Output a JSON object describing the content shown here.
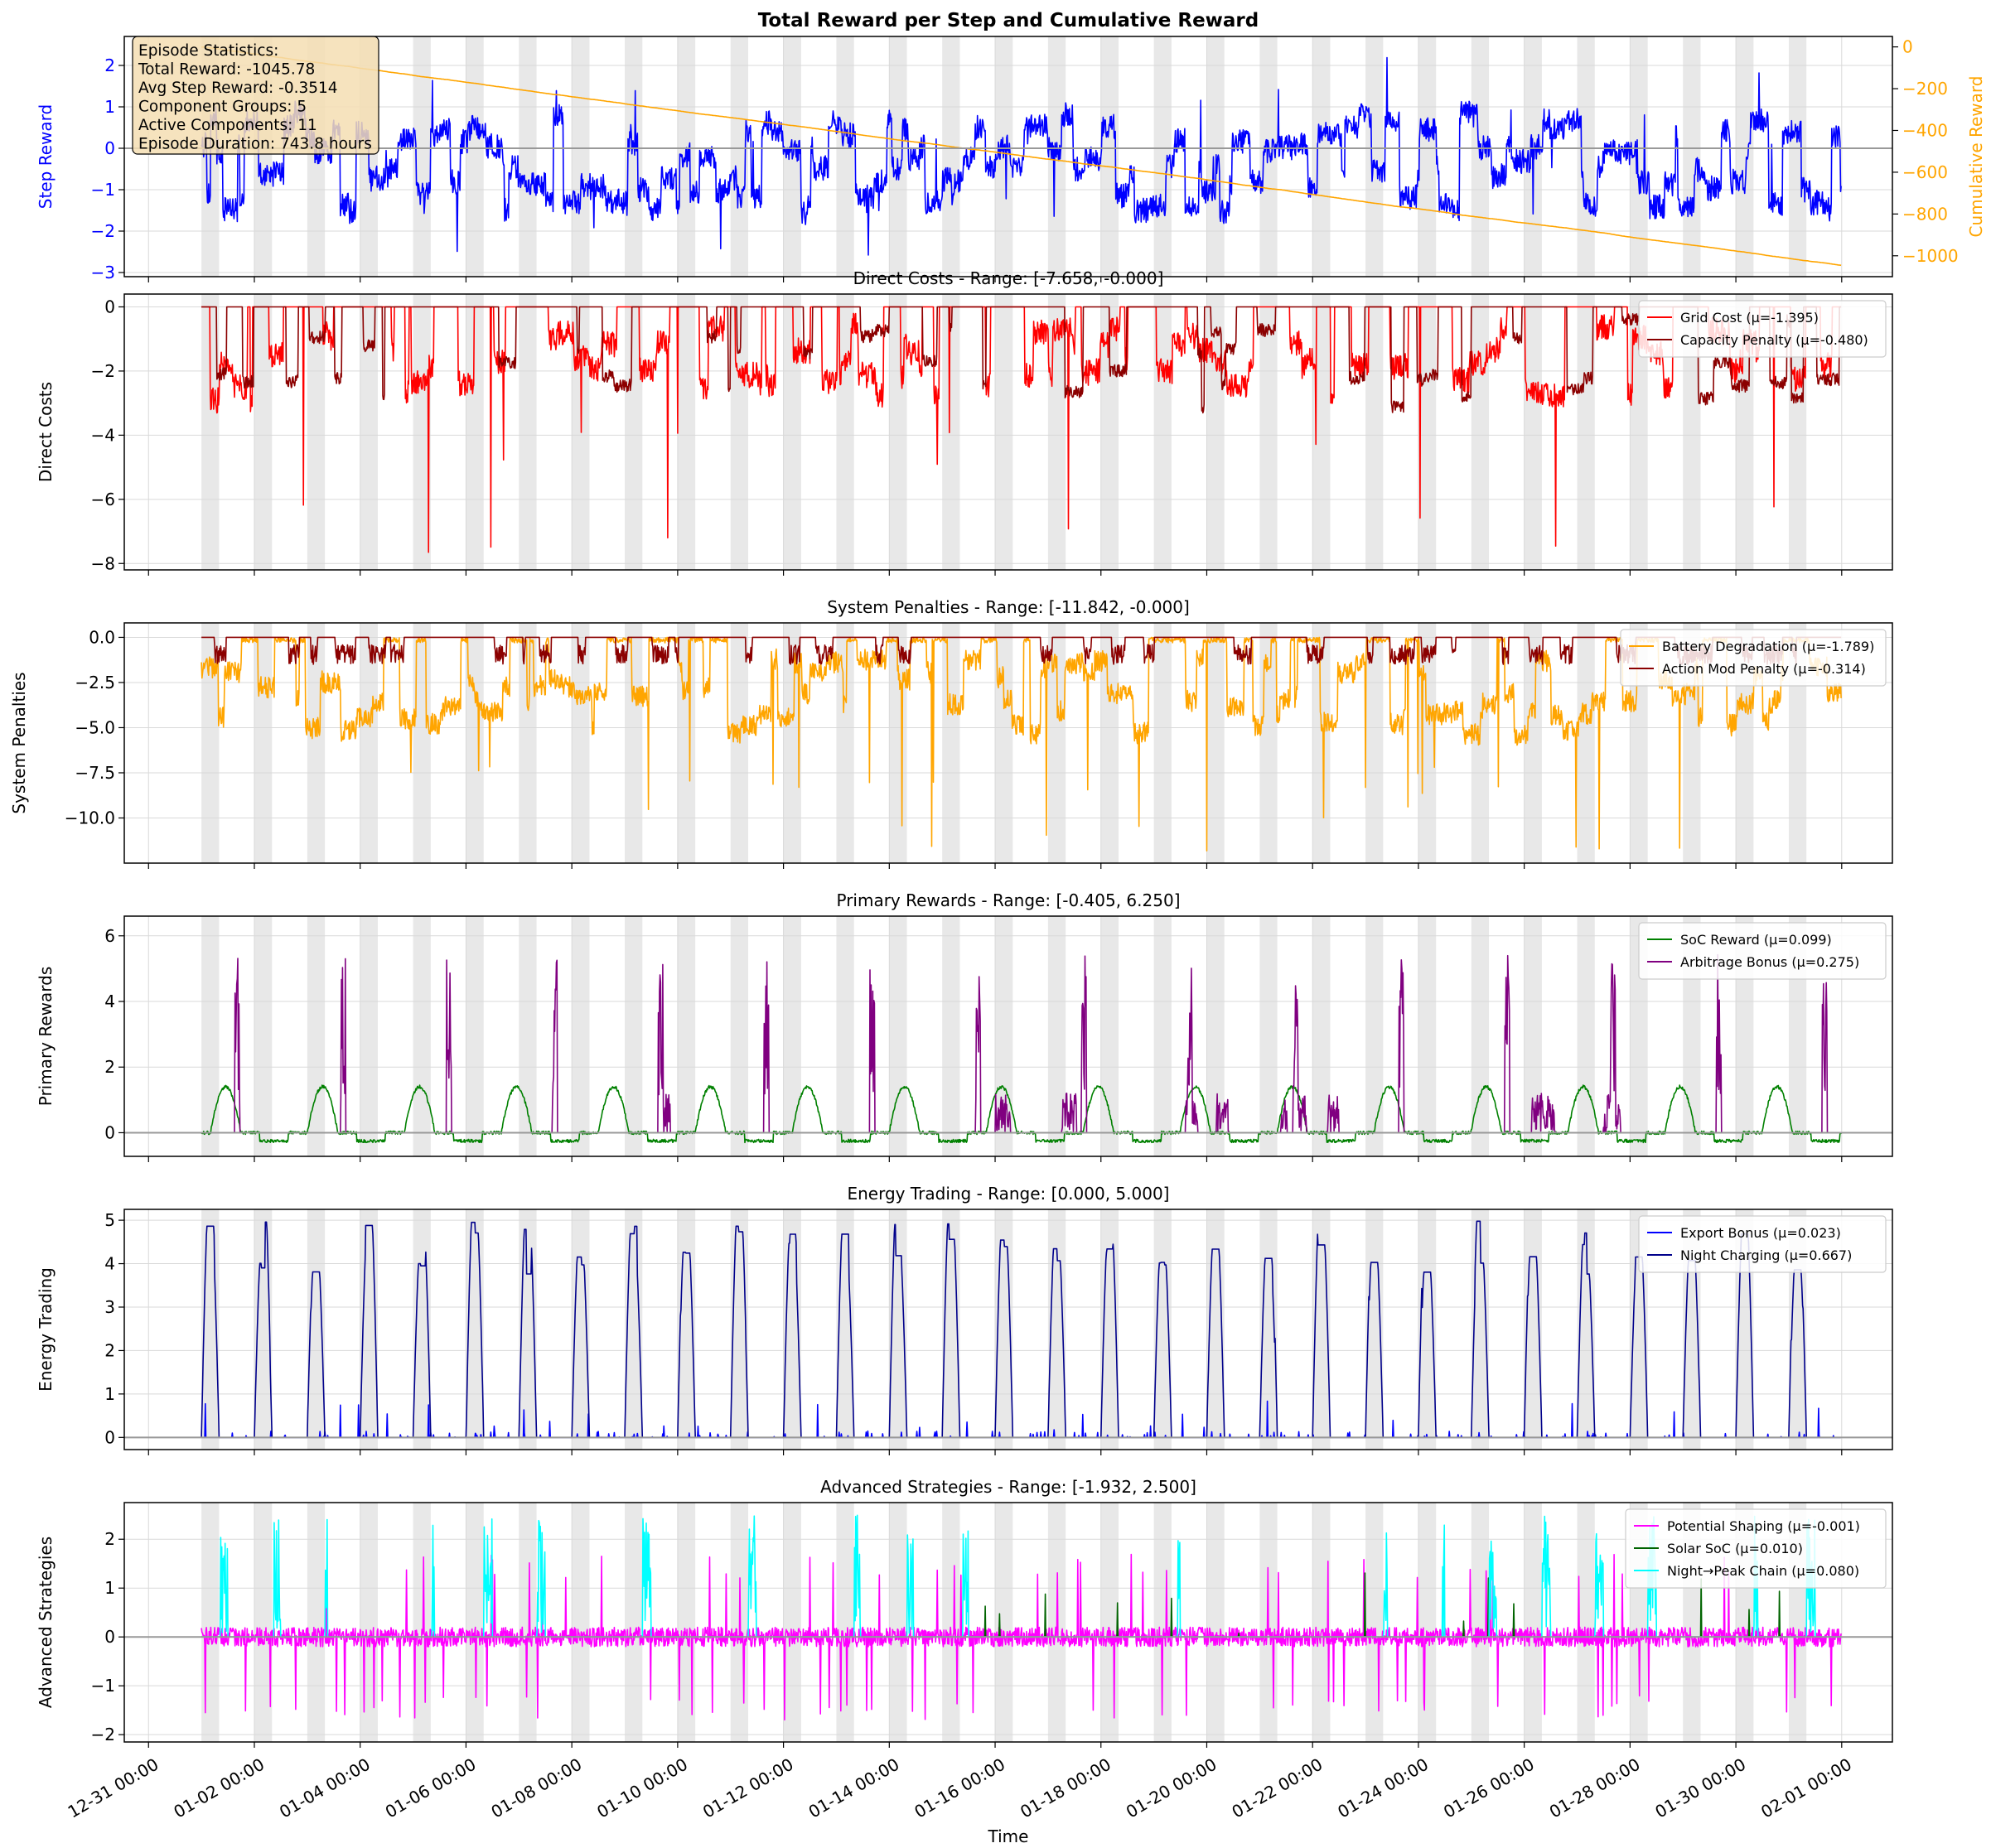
{
  "figure": {
    "xlabel": "Time",
    "x_range": [
      "2024-12-30T13:00",
      "2025-02-01T23:00"
    ],
    "x_ticks": [
      "12-31 00:00",
      "01-02 00:00",
      "01-04 00:00",
      "01-06 00:00",
      "01-08 00:00",
      "01-10 00:00",
      "01-12 00:00",
      "01-14 00:00",
      "01-16 00:00",
      "01-18 00:00",
      "01-20 00:00",
      "01-22 00:00",
      "01-24 00:00",
      "01-26 00:00",
      "01-28 00:00",
      "01-30 00:00",
      "02-01 00:00"
    ],
    "episode_start": "2025-01-01T00:00",
    "episode_end": "2025-01-31T23:45",
    "night_bands": "daily 00:00–08:00 shaded",
    "colors": {
      "shade": "#e8e8e8",
      "grid": "#d9d9d9",
      "zero_line": "#999999"
    }
  },
  "stats_box": {
    "lines": [
      "Episode Statistics:",
      "Total Reward: -1045.78",
      "Avg Step Reward: -0.3514",
      "Component Groups: 5",
      "Active Components: 11",
      "Episode Duration: 743.8 hours"
    ],
    "bg": "#f5deb3"
  },
  "chart_data": [
    {
      "type": "line",
      "title": "Total Reward per Step and Cumulative Reward",
      "ylabel": "Step Reward",
      "ylabel_right": "Cumulative Reward",
      "ylim": [
        -3.1,
        2.7
      ],
      "yticks": [
        -3,
        -2,
        -1,
        0,
        1,
        2
      ],
      "ylim_right": [
        -1100,
        50
      ],
      "yticks_right": [
        0,
        -200,
        -400,
        -600,
        -800,
        -1000
      ],
      "series": [
        {
          "name": "",
          "color": "#0000ff",
          "axis": "left",
          "mean": -0.3514,
          "min": -2.85,
          "max": 2.4
        },
        {
          "name": "",
          "color": "#ffa500",
          "axis": "right",
          "start": 0,
          "end": -1045.78
        }
      ],
      "legend": "none"
    },
    {
      "type": "line",
      "title": "Direct Costs - Range: [-7.658, -0.000]",
      "ylabel": "Direct Costs",
      "ylim": [
        -8.2,
        0.4
      ],
      "yticks": [
        -8,
        -6,
        -4,
        -2,
        0
      ],
      "series": [
        {
          "name": "Grid Cost (μ=-1.395)",
          "color": "#ff0000",
          "mean": -1.395,
          "min": -7.658,
          "max": 0
        },
        {
          "name": "Capacity Penalty (μ=-0.480)",
          "color": "#8b0000",
          "mean": -0.48,
          "min": -6.6,
          "max": 0
        }
      ],
      "legend": "top-right"
    },
    {
      "type": "line",
      "title": "System Penalties - Range: [-11.842, -0.000]",
      "ylabel": "System Penalties",
      "ylim": [
        -12.5,
        0.8
      ],
      "yticks": [
        -10.0,
        -7.5,
        -5.0,
        -2.5,
        0.0
      ],
      "series": [
        {
          "name": "Battery Degradation (μ=-1.789)",
          "color": "#ffa500",
          "mean": -1.789,
          "min": -11.842,
          "max": 0
        },
        {
          "name": "Action Mod Penalty (μ=-0.314)",
          "color": "#8b0000",
          "mean": -0.314,
          "min": -1.6,
          "max": 0
        }
      ],
      "legend": "top-right"
    },
    {
      "type": "line",
      "title": "Primary Rewards - Range: [-0.405, 6.250]",
      "ylabel": "Primary Rewards",
      "ylim": [
        -0.72,
        6.6
      ],
      "yticks": [
        0,
        2,
        4,
        6
      ],
      "series": [
        {
          "name": "SoC Reward (μ=0.099)",
          "color": "#008000",
          "mean": 0.099,
          "min": -0.405,
          "max": 1.5
        },
        {
          "name": "Arbitrage Bonus (μ=0.275)",
          "color": "#800080",
          "mean": 0.275,
          "min": 0,
          "max": 6.25
        }
      ],
      "legend": "top-right"
    },
    {
      "type": "line",
      "title": "Energy Trading - Range: [0.000, 5.000]",
      "ylabel": "Energy Trading",
      "ylim": [
        -0.28,
        5.25
      ],
      "yticks": [
        0,
        1,
        2,
        3,
        4,
        5
      ],
      "series": [
        {
          "name": "Export Bonus (μ=0.023)",
          "color": "#0000ff",
          "mean": 0.023,
          "min": 0,
          "max": 0.85
        },
        {
          "name": "Night Charging (μ=0.667)",
          "color": "#00008b",
          "mean": 0.667,
          "min": 0,
          "max": 5.0
        }
      ],
      "legend": "top-right"
    },
    {
      "type": "line",
      "title": "Advanced Strategies - Range: [-1.932, 2.500]",
      "ylabel": "Advanced Strategies",
      "ylim": [
        -2.15,
        2.75
      ],
      "yticks": [
        -2,
        -1,
        0,
        1,
        2
      ],
      "series": [
        {
          "name": "Potential Shaping (μ=-0.001)",
          "color": "#ff00ff",
          "mean": -0.001,
          "min": -1.932,
          "max": 2.3
        },
        {
          "name": "Solar SoC (μ=0.010)",
          "color": "#006400",
          "mean": 0.01,
          "min": 0,
          "max": 1.6
        },
        {
          "name": "Night→Peak Chain (μ=0.080)",
          "color": "#00ffff",
          "mean": 0.08,
          "min": 0,
          "max": 2.5
        }
      ],
      "legend": "top-right"
    }
  ]
}
